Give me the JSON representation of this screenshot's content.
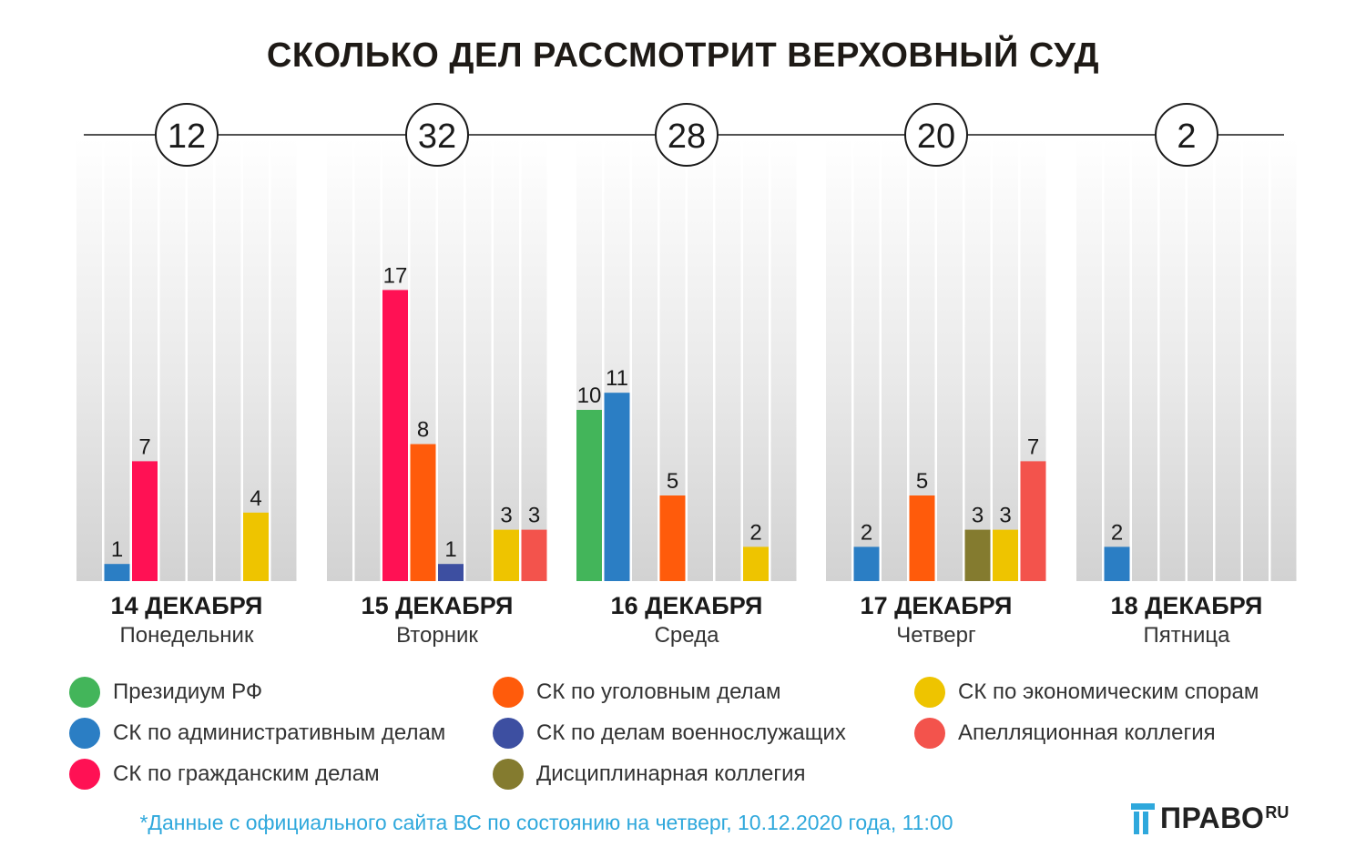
{
  "title": "СКОЛЬКО ДЕЛ РАССМОТРИТ ВЕРХОВНЫЙ СУД",
  "chart_data": {
    "type": "bar",
    "title": "СКОЛЬКО ДЕЛ РАССМОТРИТ ВЕРХОВНЫЙ СУД",
    "ylim": [
      0,
      25
    ],
    "categories": [
      {
        "date": "14 ДЕКАБРЯ",
        "weekday": "Понедельник",
        "total": "12"
      },
      {
        "date": "15 ДЕКАБРЯ",
        "weekday": "Вторник",
        "total": "32"
      },
      {
        "date": "16 ДЕКАБРЯ",
        "weekday": "Среда",
        "total": "28"
      },
      {
        "date": "17 ДЕКАБРЯ",
        "weekday": "Четверг",
        "total": "20"
      },
      {
        "date": "18 ДЕКАБРЯ",
        "weekday": "Пятница",
        "total": "2"
      }
    ],
    "series": [
      {
        "name": "Президиум РФ",
        "color": "#43b55a",
        "values": [
          null,
          null,
          10,
          null,
          null
        ]
      },
      {
        "name": "СК по административным делам",
        "color": "#2b7ec4",
        "values": [
          1,
          null,
          11,
          2,
          2
        ]
      },
      {
        "name": "СК по гражданским делам",
        "color": "#ff1154",
        "values": [
          7,
          17,
          null,
          null,
          null
        ]
      },
      {
        "name": "СК по уголовным делам",
        "color": "#ff5b0b",
        "values": [
          null,
          8,
          5,
          5,
          null
        ]
      },
      {
        "name": "СК по делам военнослужащих",
        "color": "#3d4fa1",
        "values": [
          null,
          1,
          null,
          null,
          null
        ]
      },
      {
        "name": "Дисциплинарная коллегия",
        "color": "#847b2f",
        "values": [
          null,
          null,
          null,
          3,
          null
        ]
      },
      {
        "name": "СК по экономическим спорам",
        "color": "#eec400",
        "values": [
          4,
          3,
          2,
          3,
          null
        ]
      },
      {
        "name": "Апелляционная коллегия",
        "color": "#f3534c",
        "values": [
          null,
          3,
          null,
          7,
          null
        ]
      }
    ]
  },
  "legend": {
    "col1": [
      {
        "label": "Президиум РФ",
        "color": "#43b55a"
      },
      {
        "label": "СК по административным делам",
        "color": "#2b7ec4"
      },
      {
        "label": "СК по гражданским делам",
        "color": "#ff1154"
      }
    ],
    "col2": [
      {
        "label": "СК по уголовным делам",
        "color": "#ff5b0b"
      },
      {
        "label": "СК по делам военнослужащих",
        "color": "#3d4fa1"
      },
      {
        "label": "Дисциплинарная коллегия",
        "color": "#847b2f"
      }
    ],
    "col3": [
      {
        "label": "СК по экономическим спорам",
        "color": "#eec400"
      },
      {
        "label": "Апелляционная коллегия",
        "color": "#f3534c"
      }
    ]
  },
  "footnote": "*Данные с официального сайта ВС по состоянию на четверг, 10.12.2020 года, 11:00",
  "brand": {
    "main": "ПРАВО",
    "sub": "RU",
    "icon": "pravo-logo-icon"
  }
}
